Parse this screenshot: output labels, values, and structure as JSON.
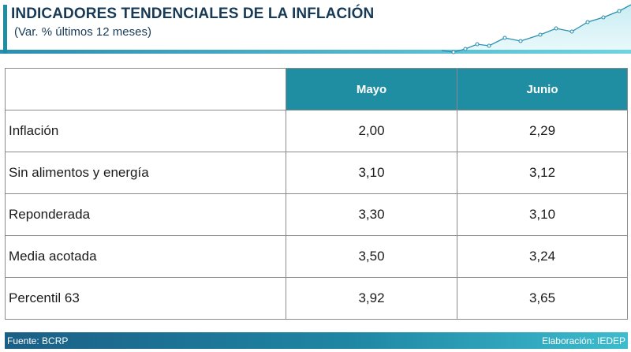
{
  "header": {
    "title": "INDICADORES TENDENCIALES DE LA INFLACIÓN",
    "subtitle": "(Var. % últimos 12 meses)"
  },
  "chart_data": {
    "type": "table",
    "columns": [
      "",
      "Mayo",
      "Junio"
    ],
    "rows": [
      {
        "label": "Inflación",
        "values": [
          "2,00",
          "2,29"
        ]
      },
      {
        "label": "Sin alimentos y energía",
        "values": [
          "3,10",
          "3,12"
        ]
      },
      {
        "label": "Reponderada",
        "values": [
          "3,30",
          "3,10"
        ]
      },
      {
        "label": "Media acotada",
        "values": [
          "3,50",
          "3,24"
        ]
      },
      {
        "label": "Percentil 63",
        "values": [
          "3,92",
          "3,65"
        ]
      }
    ]
  },
  "footer": {
    "source": "Fuente: BCRP",
    "credit": "Elaboración: IEDEP"
  },
  "colors": {
    "header_fill": "#1f8ea3",
    "title": "#173a57",
    "footer_start": "#1b5f86",
    "footer_end": "#3dbccd"
  }
}
